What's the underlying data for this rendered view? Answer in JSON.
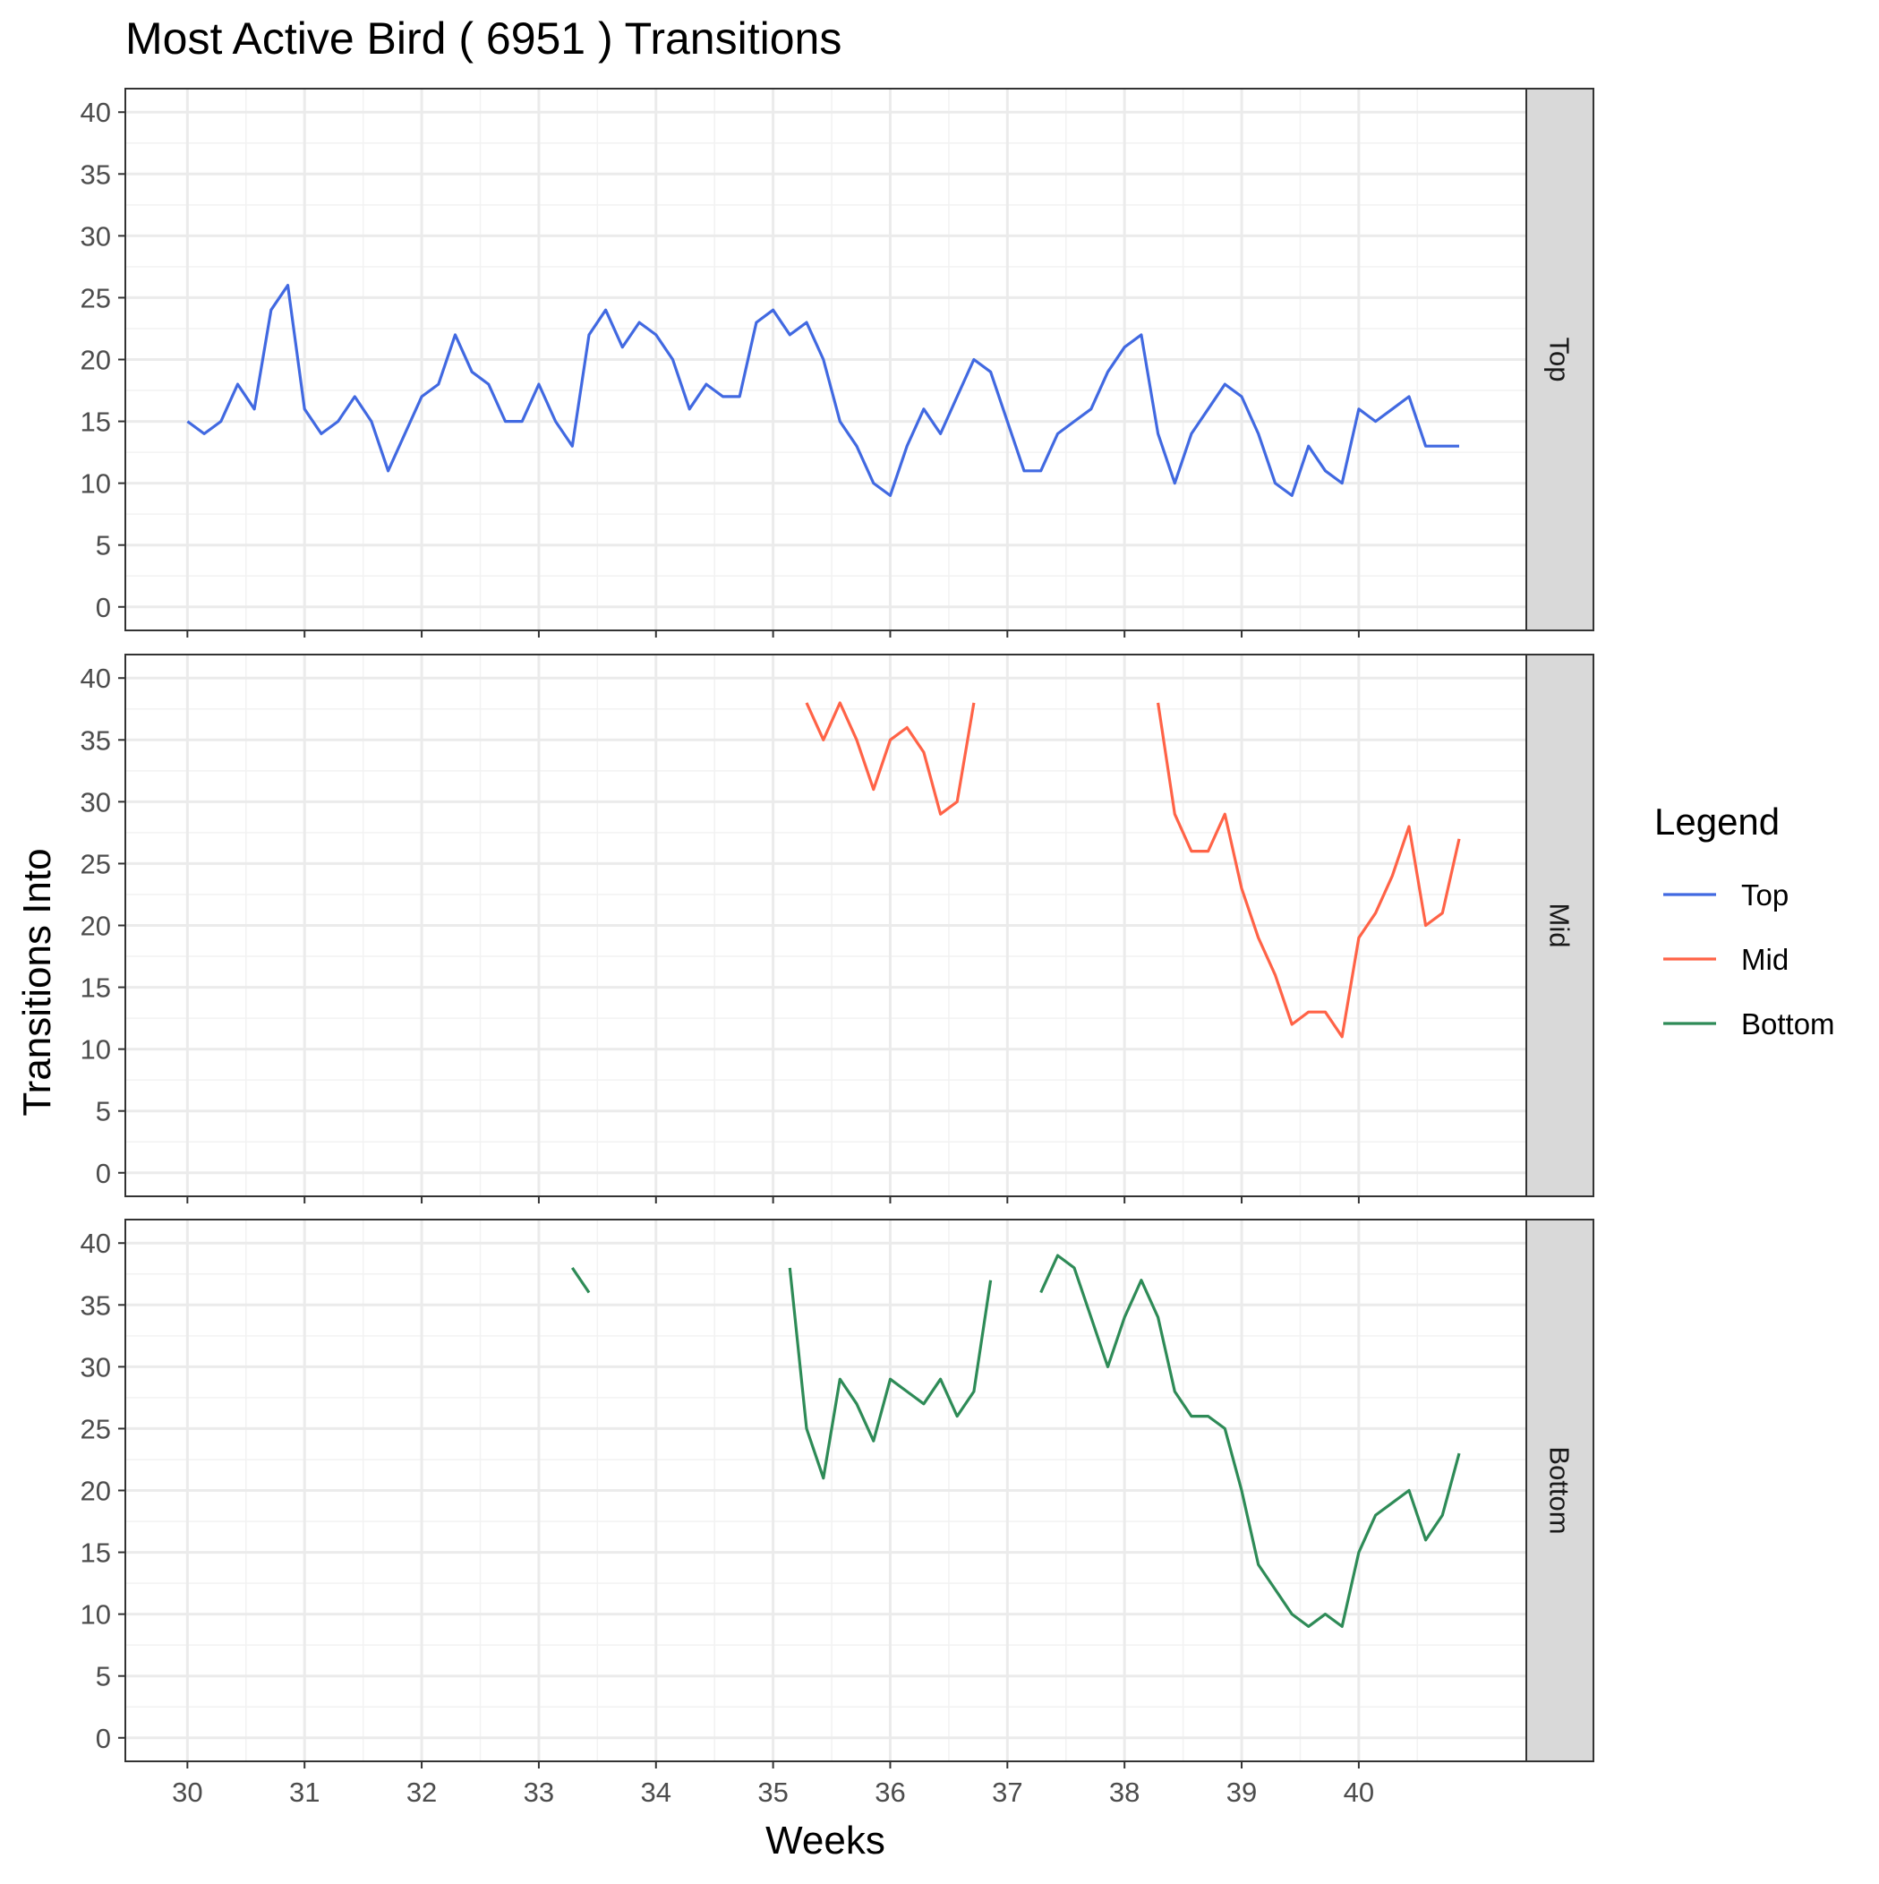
{
  "chart_data": {
    "type": "line",
    "title": "Most Active Bird ( 6951 ) Transitions",
    "xlabel": "Weeks",
    "ylabel": "Transitions Into",
    "xlim": [
      29.47,
      41.43
    ],
    "ylim": [
      -1.9,
      41.9
    ],
    "x_ticks": [
      30,
      31,
      32,
      33,
      34,
      35,
      36,
      37,
      38,
      39,
      40
    ],
    "y_ticks": [
      0,
      5,
      10,
      15,
      20,
      25,
      30,
      35,
      40
    ],
    "grid": true,
    "legend": {
      "title": "Legend",
      "position": "right",
      "entries": [
        {
          "label": "Top",
          "color": "#4169E1"
        },
        {
          "label": "Mid",
          "color": "#FF6347"
        },
        {
          "label": "Bottom",
          "color": "#2E8B57"
        }
      ]
    },
    "facets": [
      {
        "strip": "Top",
        "series": "Top",
        "color": "#4169E1",
        "segments": [
          [
            [
              30.0,
              15
            ],
            [
              30.143,
              14
            ],
            [
              30.286,
              15
            ],
            [
              30.429,
              18
            ],
            [
              30.571,
              16
            ],
            [
              30.714,
              24
            ],
            [
              30.857,
              26
            ],
            [
              31.0,
              16
            ],
            [
              31.143,
              14
            ],
            [
              31.286,
              15
            ],
            [
              31.429,
              17
            ],
            [
              31.571,
              15
            ],
            [
              31.714,
              11
            ],
            [
              31.857,
              14
            ],
            [
              32.0,
              17
            ],
            [
              32.143,
              18
            ],
            [
              32.286,
              22
            ],
            [
              32.429,
              19
            ],
            [
              32.571,
              18
            ],
            [
              32.714,
              15
            ],
            [
              32.857,
              15
            ],
            [
              33.0,
              18
            ],
            [
              33.143,
              15
            ],
            [
              33.286,
              13
            ],
            [
              33.429,
              22
            ],
            [
              33.571,
              24
            ],
            [
              33.714,
              21
            ],
            [
              33.857,
              23
            ],
            [
              34.0,
              22
            ],
            [
              34.143,
              20
            ],
            [
              34.286,
              16
            ],
            [
              34.429,
              18
            ],
            [
              34.571,
              17
            ],
            [
              34.714,
              17
            ],
            [
              34.857,
              23
            ],
            [
              35.0,
              24
            ],
            [
              35.143,
              22
            ],
            [
              35.286,
              23
            ],
            [
              35.429,
              20
            ],
            [
              35.571,
              15
            ],
            [
              35.714,
              13
            ],
            [
              35.857,
              10
            ],
            [
              36.0,
              9
            ],
            [
              36.143,
              13
            ],
            [
              36.286,
              16
            ],
            [
              36.429,
              14
            ],
            [
              36.571,
              17
            ],
            [
              36.714,
              20
            ],
            [
              36.857,
              19
            ],
            [
              37.0,
              15
            ],
            [
              37.143,
              11
            ],
            [
              37.286,
              11
            ],
            [
              37.429,
              14
            ],
            [
              37.571,
              15
            ],
            [
              37.714,
              16
            ],
            [
              37.857,
              19
            ],
            [
              38.0,
              21
            ],
            [
              38.143,
              22
            ],
            [
              38.286,
              14
            ],
            [
              38.429,
              10
            ],
            [
              38.571,
              14
            ],
            [
              38.714,
              16
            ],
            [
              38.857,
              18
            ],
            [
              39.0,
              17
            ],
            [
              39.143,
              14
            ],
            [
              39.286,
              10
            ],
            [
              39.429,
              9
            ],
            [
              39.571,
              13
            ],
            [
              39.714,
              11
            ],
            [
              39.857,
              10
            ],
            [
              40.0,
              16
            ],
            [
              40.143,
              15
            ],
            [
              40.286,
              16
            ],
            [
              40.429,
              17
            ],
            [
              40.571,
              13
            ],
            [
              40.714,
              13
            ],
            [
              40.857,
              13
            ]
          ]
        ]
      },
      {
        "strip": "Mid",
        "series": "Mid",
        "color": "#FF6347",
        "segments": [
          [
            [
              35.286,
              38
            ],
            [
              35.429,
              35
            ],
            [
              35.571,
              38
            ],
            [
              35.714,
              35
            ],
            [
              35.857,
              31
            ],
            [
              36.0,
              35
            ],
            [
              36.143,
              36
            ],
            [
              36.286,
              34
            ],
            [
              36.429,
              29
            ],
            [
              36.571,
              30
            ],
            [
              36.714,
              38
            ]
          ],
          [
            [
              38.286,
              38
            ],
            [
              38.429,
              29
            ],
            [
              38.571,
              26
            ],
            [
              38.714,
              26
            ],
            [
              38.857,
              29
            ],
            [
              39.0,
              23
            ],
            [
              39.143,
              19
            ],
            [
              39.286,
              16
            ],
            [
              39.429,
              12
            ],
            [
              39.571,
              13
            ],
            [
              39.714,
              13
            ],
            [
              39.857,
              11
            ],
            [
              40.0,
              19
            ],
            [
              40.143,
              21
            ],
            [
              40.286,
              24
            ],
            [
              40.429,
              28
            ],
            [
              40.571,
              20
            ],
            [
              40.714,
              21
            ],
            [
              40.857,
              27
            ]
          ]
        ]
      },
      {
        "strip": "Bottom",
        "series": "Bottom",
        "color": "#2E8B57",
        "segments": [
          [
            [
              33.286,
              38
            ],
            [
              33.429,
              36
            ]
          ],
          [
            [
              35.143,
              38
            ],
            [
              35.286,
              25
            ],
            [
              35.429,
              21
            ],
            [
              35.571,
              29
            ],
            [
              35.714,
              27
            ],
            [
              35.857,
              24
            ],
            [
              36.0,
              29
            ],
            [
              36.143,
              28
            ],
            [
              36.286,
              27
            ],
            [
              36.429,
              29
            ],
            [
              36.571,
              26
            ],
            [
              36.714,
              28
            ],
            [
              36.857,
              37
            ]
          ],
          [
            [
              37.286,
              36
            ],
            [
              37.429,
              39
            ],
            [
              37.571,
              38
            ],
            [
              37.714,
              34
            ],
            [
              37.857,
              30
            ],
            [
              38.0,
              34
            ],
            [
              38.143,
              37
            ],
            [
              38.286,
              34
            ],
            [
              38.429,
              28
            ],
            [
              38.571,
              26
            ],
            [
              38.714,
              26
            ],
            [
              38.857,
              25
            ],
            [
              39.0,
              20
            ],
            [
              39.143,
              14
            ],
            [
              39.286,
              12
            ],
            [
              39.429,
              10
            ],
            [
              39.571,
              9
            ],
            [
              39.714,
              10
            ],
            [
              39.857,
              9
            ],
            [
              40.0,
              15
            ],
            [
              40.143,
              18
            ],
            [
              40.286,
              19
            ],
            [
              40.429,
              20
            ],
            [
              40.571,
              16
            ],
            [
              40.714,
              18
            ],
            [
              40.857,
              23
            ]
          ]
        ]
      }
    ]
  }
}
